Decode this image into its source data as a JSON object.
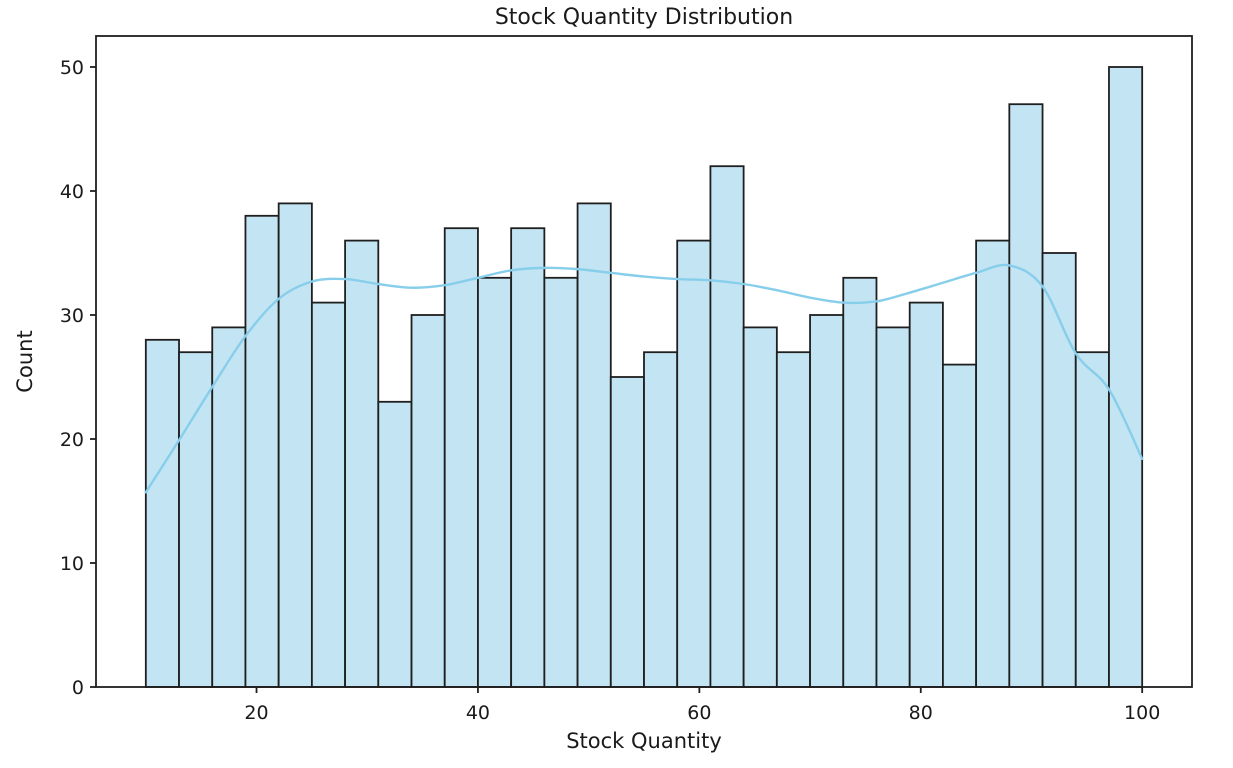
{
  "figure": {
    "title": "Stock Quantity Distribution",
    "xlabel": "Stock Quantity",
    "ylabel": "Count"
  },
  "chart_data": {
    "type": "histogram",
    "title": "Stock Quantity Distribution",
    "xlabel": "Stock Quantity",
    "ylabel": "Count",
    "grid": false,
    "legend_position": null,
    "background": "#ffffff",
    "bin_edges": [
      10,
      13,
      16,
      19,
      22,
      25,
      28,
      31,
      34,
      37,
      40,
      43,
      46,
      49,
      52,
      55,
      58,
      61,
      64,
      67,
      70,
      73,
      76,
      79,
      82,
      85,
      88,
      91,
      94,
      97,
      100
    ],
    "counts": [
      28,
      27,
      29,
      38,
      39,
      31,
      36,
      23,
      30,
      37,
      33,
      37,
      33,
      39,
      25,
      27,
      36,
      42,
      29,
      27,
      30,
      33,
      29,
      31,
      26,
      36,
      47,
      35,
      27,
      50
    ],
    "kde_line": {
      "x": [
        10,
        13,
        16,
        19,
        22,
        25,
        28,
        31,
        34,
        37,
        40,
        43,
        46,
        49,
        52,
        55,
        58,
        61,
        64,
        67,
        70,
        73,
        76,
        79,
        82,
        85,
        88,
        91,
        94,
        97,
        100
      ],
      "y": [
        15.7,
        19.9,
        24.2,
        28.3,
        31.3,
        32.7,
        32.9,
        32.5,
        32.2,
        32.4,
        33.0,
        33.6,
        33.8,
        33.7,
        33.4,
        33.1,
        32.9,
        32.8,
        32.5,
        32.0,
        31.4,
        31.0,
        31.1,
        31.8,
        32.6,
        33.4,
        34.0,
        32.3,
        26.9,
        24.0,
        18.4
      ]
    },
    "xlim": [
      5.5,
      104.5
    ],
    "ylim": [
      0,
      52.5
    ],
    "xticks": [
      "20",
      "40",
      "60",
      "80",
      "100"
    ],
    "xtick_values": [
      20,
      40,
      60,
      80,
      100
    ],
    "yticks": [
      "0",
      "10",
      "20",
      "30",
      "40",
      "50"
    ],
    "ytick_values": [
      0,
      10,
      20,
      30,
      40,
      50
    ],
    "colors": {
      "bar_fill": "#c3e4f3",
      "bar_edge": "#1f1f1f",
      "kde": "#87ceeb",
      "spine": "#1f1f1f",
      "text": "#1a1a1a"
    }
  }
}
